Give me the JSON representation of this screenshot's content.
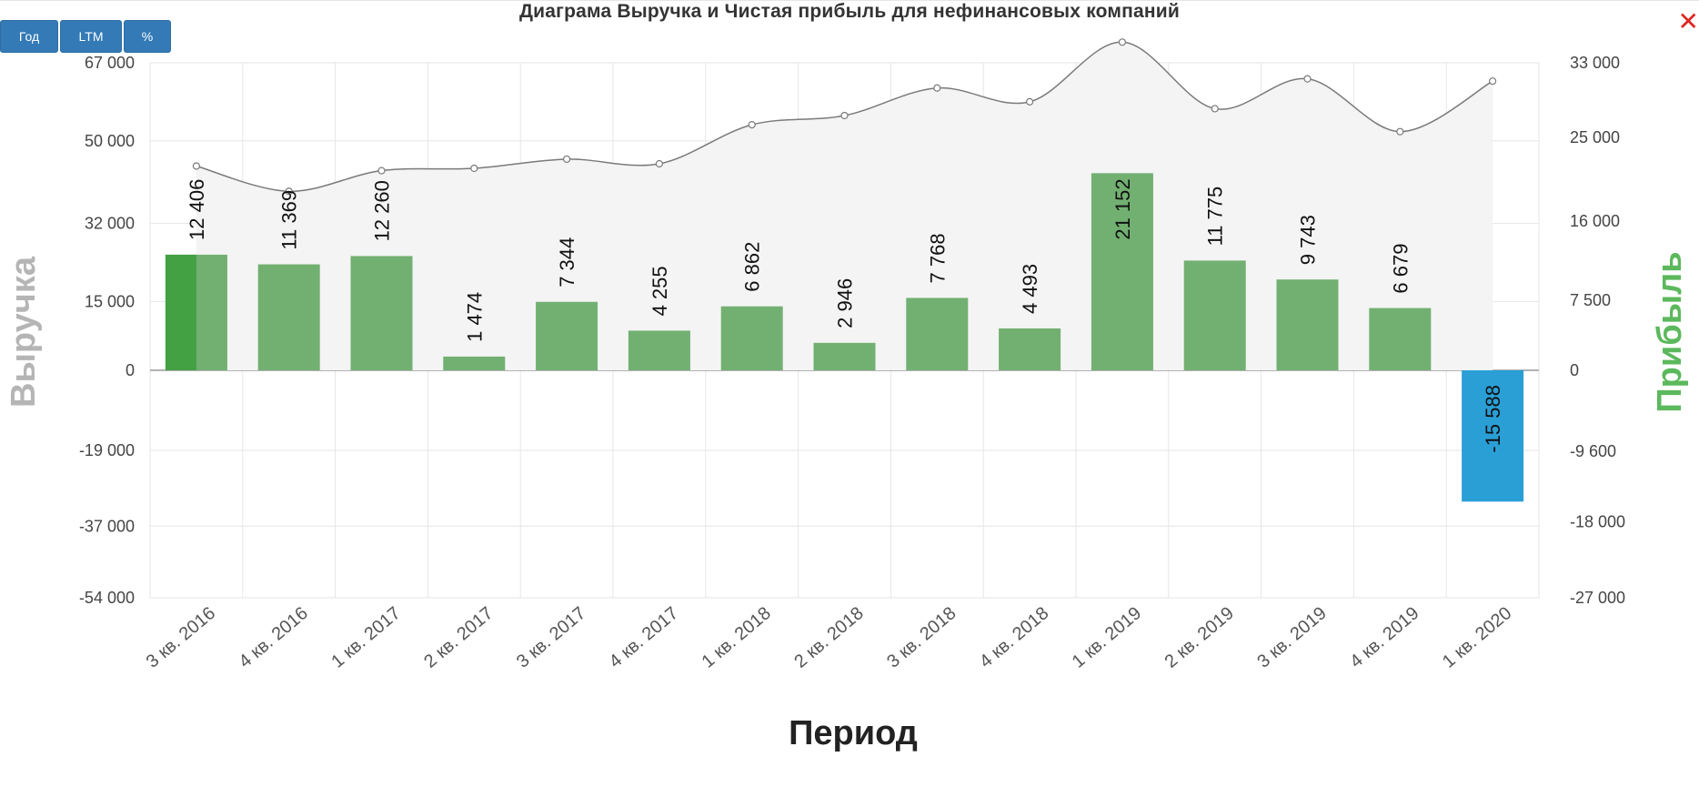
{
  "title": "Диаграма Выручка и Чистая прибыль для нефинансовых компаний",
  "buttons": {
    "year": "Год",
    "ltm": "LTM",
    "pct": "%"
  },
  "close_icon": "close-icon",
  "colors": {
    "profit_positive": "#72b071",
    "profit_positive_highlight": "#43a043",
    "profit_negative": "#2a9fd6",
    "revenue_line": "#7a7a7a",
    "revenue_area": "#f4f4f4",
    "left_axis_title": "#b5b5b5",
    "right_axis_title": "#5cb85c",
    "grid": "#e6e6e6"
  },
  "chart_data": {
    "type": "bar+area",
    "title": "Диаграма Выручка и Чистая прибыль для нефинансовых компаний",
    "xlabel": "Период",
    "categories": [
      "3 кв. 2016",
      "4 кв. 2016",
      "1 кв. 2017",
      "2 кв. 2017",
      "3 кв. 2017",
      "4 кв. 2017",
      "1 кв. 2018",
      "2 кв. 2018",
      "3 кв. 2018",
      "4 кв. 2018",
      "1 кв. 2019",
      "2 кв. 2019",
      "3 кв. 2019",
      "4 кв. 2019",
      "1 кв. 2020"
    ],
    "left_axis": {
      "title": "Выручка",
      "ticks": [
        "67 000",
        "50 000",
        "32 000",
        "15 000",
        "0",
        "-19 000",
        "-37 000",
        "-54 000"
      ],
      "range": [
        -54000,
        67000
      ]
    },
    "right_axis": {
      "title": "Прибыль",
      "ticks": [
        "33 000",
        "25 000",
        "16 000",
        "7 500",
        "0",
        "-9 600",
        "-18 000",
        "-27 000"
      ],
      "range": [
        -27000,
        33000
      ]
    },
    "profit": [
      12406,
      11369,
      12260,
      1474,
      7344,
      4255,
      6862,
      2946,
      7768,
      4493,
      21152,
      11775,
      9743,
      6679,
      -15588
    ],
    "profit_labels": [
      "12 406",
      "11 369",
      "12 260",
      "1 474",
      "7 344",
      "4 255",
      "6 862",
      "2 946",
      "7 768",
      "4 493",
      "21 152",
      "11 775",
      "9 743",
      "6 679",
      "-15 588"
    ],
    "revenue": [
      44500,
      39000,
      43500,
      44000,
      46000,
      45000,
      53500,
      55500,
      61500,
      58500,
      71500,
      57000,
      63500,
      52000,
      63000
    ],
    "grid": true
  }
}
